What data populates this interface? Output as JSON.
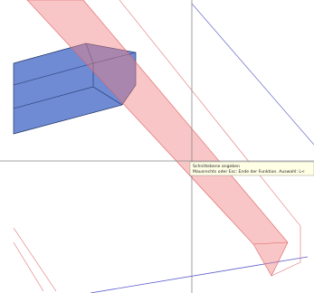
{
  "tooltip": {
    "lines": [
      "Schnittebene angeben",
      "Mausrechts oder Esc: Ende der Funktion. Auswahl: L<"
    ]
  }
}
